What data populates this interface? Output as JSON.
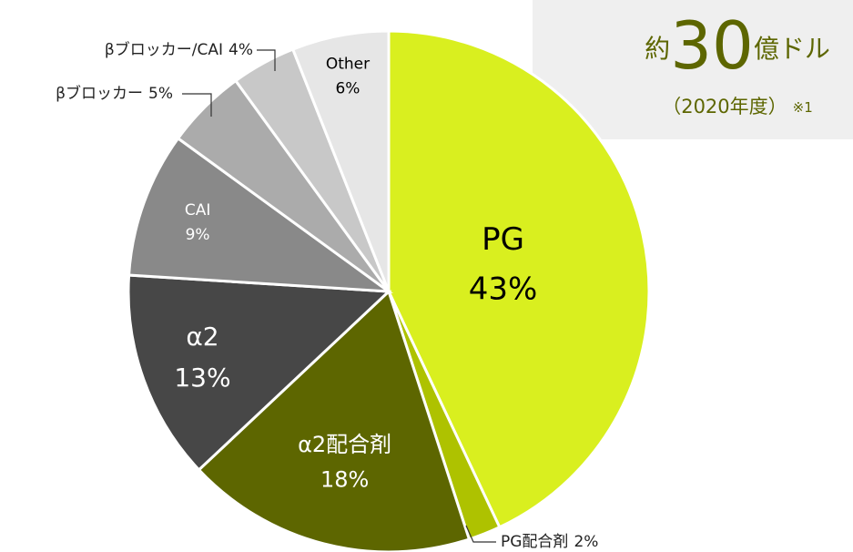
{
  "chart_data": {
    "type": "pie",
    "categories": [
      "PG",
      "PG配合剤",
      "α2配合剤",
      "α2",
      "CAI",
      "βブロッカー",
      "βブロッカー/CAI",
      "Other"
    ],
    "values": [
      43,
      2,
      18,
      13,
      9,
      5,
      4,
      6
    ],
    "value_labels": [
      "43%",
      "2%",
      "18%",
      "13%",
      "9%",
      "5%",
      "4%",
      "6%"
    ],
    "colors": [
      "#d9ef1f",
      "#aec200",
      "#5d6600",
      "#474747",
      "#898989",
      "#ababab",
      "#c8c8c8",
      "#e6e6e6"
    ],
    "annotation": {
      "prefix": "約",
      "amount": 30,
      "suffix": "億ドル",
      "period": "（2020年度）",
      "note": "※1"
    }
  }
}
